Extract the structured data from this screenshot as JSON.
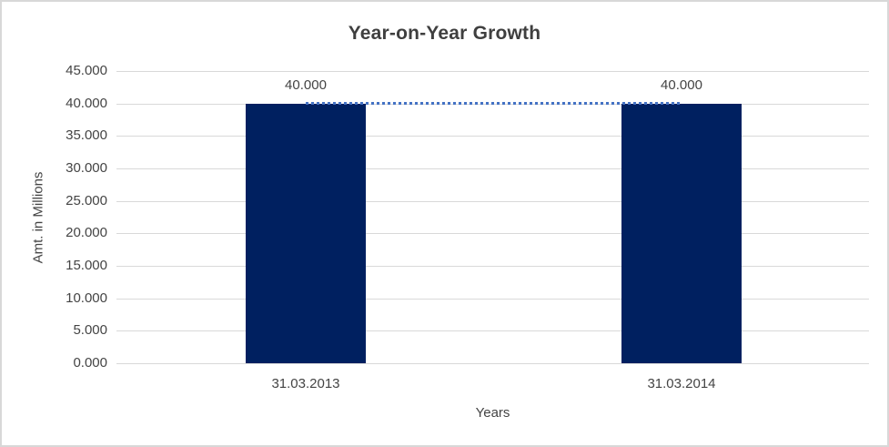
{
  "chart_data": {
    "type": "bar",
    "title": "Year-on-Year Growth",
    "xlabel": "Years",
    "ylabel": "Amt. in Millions",
    "categories": [
      "31.03.2013",
      "31.03.2014"
    ],
    "series": [
      {
        "type": "bar",
        "values": [
          40,
          40
        ],
        "data_labels": [
          "40.000",
          "40.000"
        ],
        "color": "#002060"
      },
      {
        "type": "line",
        "style": "dotted",
        "values": [
          40,
          40
        ],
        "color": "#4472C4"
      }
    ],
    "ylim": [
      0,
      45
    ],
    "ytick_step": 5,
    "ytick_labels": [
      "0.000",
      "5.000",
      "10.000",
      "15.000",
      "20.000",
      "25.000",
      "30.000",
      "35.000",
      "40.000",
      "45.000"
    ],
    "grid": true,
    "legend": "none",
    "colors": {
      "gridline": "#d9d9d9",
      "axis_line": "#d9d9d9",
      "text": "#444444",
      "frame_border": "#d8d8d8",
      "background": "#ffffff"
    }
  }
}
